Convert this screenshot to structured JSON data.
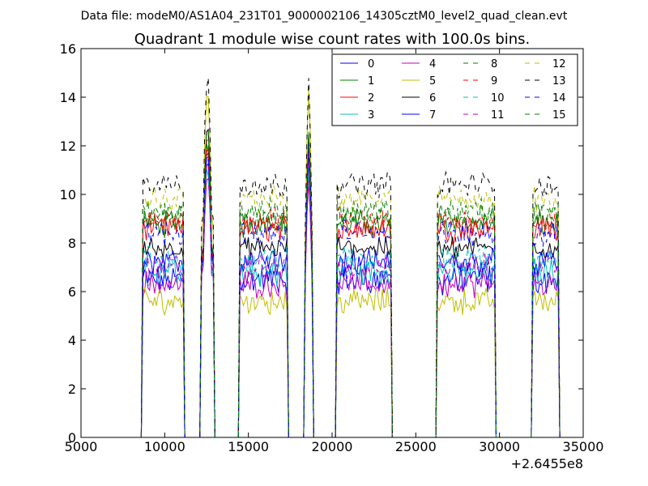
{
  "figure": {
    "suptitle": "Data file: modeM0/AS1A04_231T01_9000002106_14305cztM0_level2_quad_clean.evt"
  },
  "chart_data": {
    "type": "line",
    "title": "Quadrant 1 module wise count rates with 100.0s bins.",
    "xlabel": "",
    "ylabel": "",
    "x_offset_label": "+2.6455e8",
    "xlim": [
      5000,
      35000
    ],
    "ylim": [
      0,
      16
    ],
    "x_ticks": [
      5000,
      10000,
      15000,
      20000,
      25000,
      30000,
      35000
    ],
    "y_ticks": [
      0,
      2,
      4,
      6,
      8,
      10,
      12,
      14,
      16
    ],
    "grid": false,
    "legend": {
      "placement": "top-right",
      "columns": 4
    },
    "zero_gaps": [
      [
        11300,
        12100
      ],
      [
        13000,
        14400
      ],
      [
        17400,
        18300
      ],
      [
        18900,
        20200
      ],
      [
        23600,
        26200
      ],
      [
        29800,
        31900
      ]
    ],
    "segments": [
      {
        "start": 8700,
        "end": 11100,
        "peak": false
      },
      {
        "start": 12200,
        "end": 12900,
        "peak": true
      },
      {
        "start": 14500,
        "end": 17300,
        "peak": false
      },
      {
        "start": 18400,
        "end": 18800,
        "peak": true
      },
      {
        "start": 20300,
        "end": 23500,
        "peak": false
      },
      {
        "start": 26300,
        "end": 29700,
        "peak": false
      },
      {
        "start": 32000,
        "end": 33500,
        "peak": false
      }
    ],
    "series": [
      {
        "name": "0",
        "color": "#0000ff",
        "dash": "solid",
        "level": 6.5,
        "peak": 11.5,
        "noise": 0.5
      },
      {
        "name": "1",
        "color": "#008000",
        "dash": "solid",
        "level": 8.8,
        "peak": 12.0,
        "noise": 0.4
      },
      {
        "name": "2",
        "color": "#ff0000",
        "dash": "solid",
        "level": 8.6,
        "peak": 12.2,
        "noise": 0.4
      },
      {
        "name": "3",
        "color": "#00bfbf",
        "dash": "solid",
        "level": 6.8,
        "peak": 11.0,
        "noise": 0.5
      },
      {
        "name": "4",
        "color": "#bf00bf",
        "dash": "solid",
        "level": 6.3,
        "peak": 10.8,
        "noise": 0.4
      },
      {
        "name": "5",
        "color": "#bfbf00",
        "dash": "solid",
        "level": 5.6,
        "peak": 14.4,
        "noise": 0.4
      },
      {
        "name": "6",
        "color": "#000000",
        "dash": "solid",
        "level": 7.8,
        "peak": 12.6,
        "noise": 0.3
      },
      {
        "name": "7",
        "color": "#0000ff",
        "dash": "solid",
        "level": 7.2,
        "peak": 11.8,
        "noise": 0.4
      },
      {
        "name": "8",
        "color": "#008000",
        "dash": "dashed",
        "level": 9.0,
        "peak": 12.4,
        "noise": 0.4
      },
      {
        "name": "9",
        "color": "#ff0000",
        "dash": "dashed",
        "level": 8.9,
        "peak": 12.1,
        "noise": 0.4
      },
      {
        "name": "10",
        "color": "#00bfbf",
        "dash": "dashed",
        "level": 7.3,
        "peak": 11.2,
        "noise": 0.5
      },
      {
        "name": "11",
        "color": "#bf00bf",
        "dash": "dashed",
        "level": 7.0,
        "peak": 11.4,
        "noise": 0.4
      },
      {
        "name": "12",
        "color": "#bfbf00",
        "dash": "dashed",
        "level": 9.8,
        "peak": 14.2,
        "noise": 0.4
      },
      {
        "name": "13",
        "color": "#000000",
        "dash": "dashed",
        "level": 10.4,
        "peak": 14.8,
        "noise": 0.4
      },
      {
        "name": "14",
        "color": "#0000ff",
        "dash": "dashed",
        "level": 8.4,
        "peak": 12.0,
        "noise": 0.4
      },
      {
        "name": "15",
        "color": "#008000",
        "dash": "dashed",
        "level": 9.3,
        "peak": 12.8,
        "noise": 0.4
      }
    ]
  }
}
